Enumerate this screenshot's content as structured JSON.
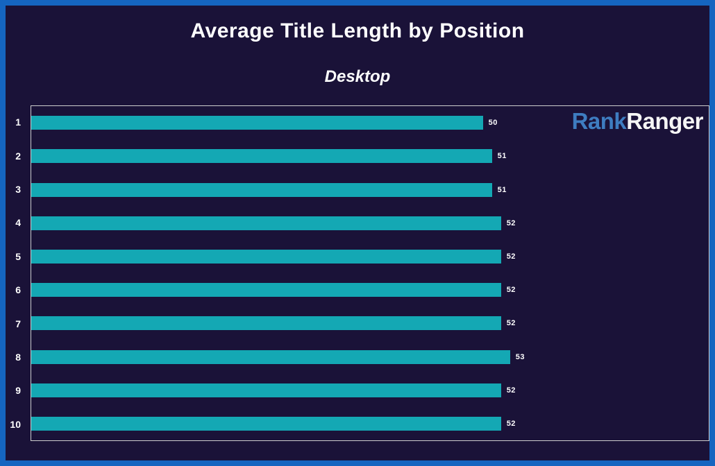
{
  "chart_data": {
    "type": "bar",
    "orientation": "horizontal",
    "title": "Average Title Length by Position",
    "subtitle": "Desktop",
    "categories": [
      "1",
      "2",
      "3",
      "4",
      "5",
      "6",
      "7",
      "8",
      "9",
      "10"
    ],
    "values": [
      50,
      51,
      51,
      52,
      52,
      52,
      52,
      53,
      52,
      52
    ],
    "xlabel": "",
    "ylabel": "",
    "xlim": [
      0,
      75
    ],
    "grid": false,
    "value_labels_shown": true,
    "legend": null
  },
  "logo": {
    "rank": "Rank",
    "ranger": "Ranger"
  },
  "colors": {
    "frame_border": "#1565c0",
    "background": "#1a1238",
    "bar_fill": "#14a8b4",
    "plot_border": "#cfcfcf",
    "text": "#ffffff",
    "logo_rank_blue": "#3e7dc1",
    "logo_ranger_white": "#f5f5f5"
  }
}
